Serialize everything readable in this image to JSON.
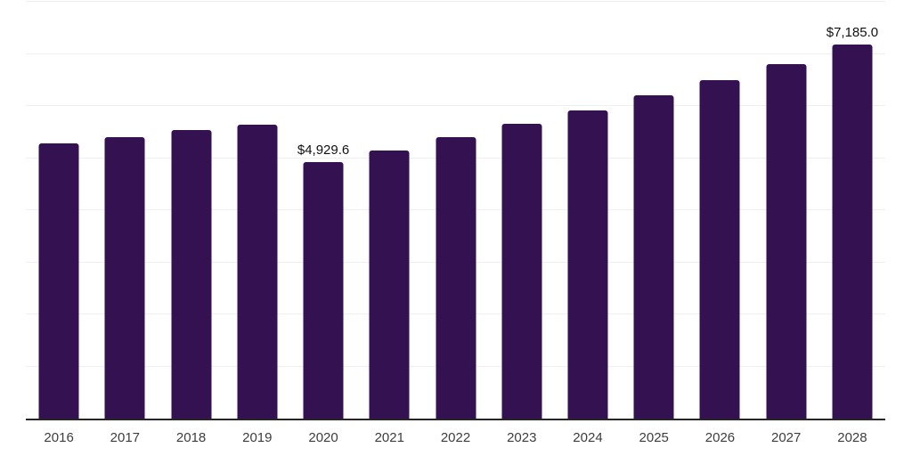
{
  "chart_data": {
    "type": "bar",
    "title": "",
    "xlabel": "",
    "ylabel": "",
    "categories": [
      "2016",
      "2017",
      "2018",
      "2019",
      "2020",
      "2021",
      "2022",
      "2023",
      "2024",
      "2025",
      "2026",
      "2027",
      "2028"
    ],
    "values": [
      5285,
      5405,
      5540,
      5645,
      4929.6,
      5150,
      5405,
      5660,
      5915,
      6205,
      6495,
      6800,
      7185.0
    ],
    "data_labels": [
      {
        "category": "2020",
        "text": "$4,929.6"
      },
      {
        "category": "2028",
        "text": "$7,185.0"
      }
    ],
    "ylim": [
      0,
      8000
    ],
    "gridline_step": 1000,
    "grid": true,
    "legend": false,
    "y_tick_labels_shown": false,
    "colors": {
      "bar": "#341150",
      "gridline": "#efefef",
      "axis_line": "#262626",
      "tick_label": "#3d3d3d",
      "data_label": "#111111",
      "background": "#ffffff"
    }
  }
}
